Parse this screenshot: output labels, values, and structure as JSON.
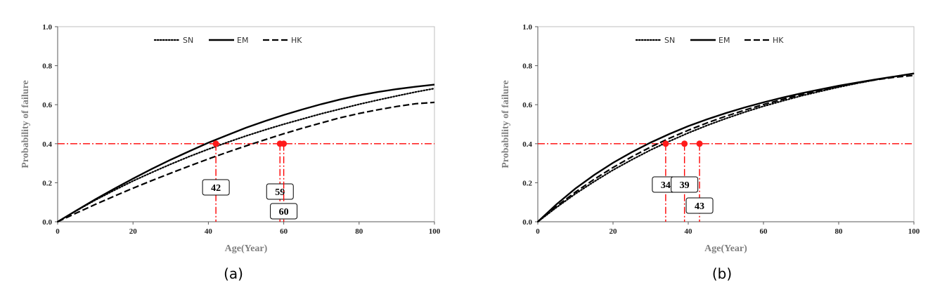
{
  "chart_data": [
    {
      "type": "line",
      "caption": "(a)",
      "xlabel": "Age(Year)",
      "ylabel": "Probability of failure",
      "xlim": [
        0,
        100
      ],
      "ylim": [
        0,
        1.0
      ],
      "xticks": [
        "0",
        "20",
        "40",
        "60",
        "80",
        "100"
      ],
      "yticks": [
        "0.0",
        "0.2",
        "0.4",
        "0.6",
        "0.8",
        "1.0"
      ],
      "legend_position": "top-center",
      "x": [
        0,
        5,
        10,
        15,
        20,
        25,
        30,
        35,
        40,
        45,
        50,
        55,
        60,
        65,
        70,
        75,
        80,
        85,
        90,
        95,
        100
      ],
      "series": [
        {
          "name": "SN",
          "style": "dotted",
          "values": [
            0,
            0.057,
            0.111,
            0.161,
            0.209,
            0.253,
            0.295,
            0.335,
            0.372,
            0.407,
            0.44,
            0.471,
            0.5,
            0.527,
            0.554,
            0.578,
            0.602,
            0.624,
            0.645,
            0.665,
            0.683
          ]
        },
        {
          "name": "EM",
          "style": "solid",
          "values": [
            0,
            0.058,
            0.115,
            0.169,
            0.221,
            0.271,
            0.318,
            0.362,
            0.405,
            0.444,
            0.482,
            0.516,
            0.547,
            0.576,
            0.603,
            0.627,
            0.648,
            0.665,
            0.68,
            0.692,
            0.703
          ]
        },
        {
          "name": "HK",
          "style": "dashed",
          "values": [
            0,
            0.045,
            0.089,
            0.131,
            0.172,
            0.211,
            0.249,
            0.286,
            0.322,
            0.356,
            0.389,
            0.42,
            0.451,
            0.48,
            0.507,
            0.533,
            0.555,
            0.574,
            0.591,
            0.605,
            0.612
          ]
        }
      ],
      "threshold": 0.4,
      "markers": [
        {
          "x": 42,
          "label": "42"
        },
        {
          "x": 59,
          "label": "59"
        },
        {
          "x": 60,
          "label": "60"
        }
      ],
      "colors": {
        "threshold": "#ff0000",
        "marker": "#ff1a1a"
      }
    },
    {
      "type": "line",
      "caption": "(b)",
      "xlabel": "Age(Year)",
      "ylabel": "Probability of failure",
      "xlim": [
        0,
        100
      ],
      "ylim": [
        0,
        1.0
      ],
      "xticks": [
        "0",
        "20",
        "40",
        "60",
        "80",
        "100"
      ],
      "yticks": [
        "0.0",
        "0.2",
        "0.4",
        "0.6",
        "0.8",
        "1.0"
      ],
      "legend_position": "top-center",
      "x": [
        0,
        5,
        10,
        15,
        20,
        25,
        30,
        35,
        40,
        45,
        50,
        55,
        60,
        65,
        70,
        75,
        80,
        85,
        90,
        95,
        100
      ],
      "series": [
        {
          "name": "SN",
          "style": "dotted",
          "values": [
            0,
            0.074,
            0.143,
            0.206,
            0.265,
            0.318,
            0.368,
            0.413,
            0.455,
            0.494,
            0.529,
            0.562,
            0.592,
            0.619,
            0.645,
            0.668,
            0.69,
            0.71,
            0.728,
            0.745,
            0.76
          ]
        },
        {
          "name": "EM",
          "style": "solid",
          "values": [
            0,
            0.09,
            0.17,
            0.24,
            0.302,
            0.357,
            0.406,
            0.45,
            0.49,
            0.525,
            0.557,
            0.586,
            0.612,
            0.636,
            0.658,
            0.678,
            0.697,
            0.714,
            0.73,
            0.745,
            0.76
          ]
        },
        {
          "name": "HK",
          "style": "dashed",
          "values": [
            0,
            0.079,
            0.152,
            0.218,
            0.278,
            0.333,
            0.383,
            0.428,
            0.469,
            0.507,
            0.541,
            0.572,
            0.601,
            0.627,
            0.651,
            0.673,
            0.693,
            0.711,
            0.728,
            0.741,
            0.75
          ]
        }
      ],
      "threshold": 0.4,
      "markers": [
        {
          "x": 34,
          "label": "34"
        },
        {
          "x": 39,
          "label": "39"
        },
        {
          "x": 43,
          "label": "43"
        }
      ],
      "colors": {
        "threshold": "#ff0000",
        "marker": "#ff1a1a"
      }
    }
  ]
}
